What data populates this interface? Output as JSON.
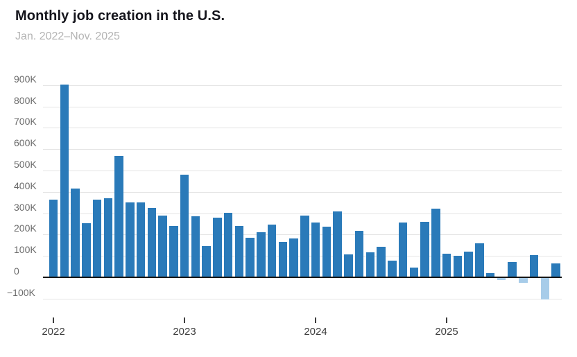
{
  "chart_data": {
    "type": "bar",
    "title": "Monthly job creation in the U.S.",
    "subtitle": "Jan. 2022–Nov. 2025",
    "units": "jobs added, thousands (K)",
    "legend": "none",
    "grid": "horizontal only",
    "months": [
      "Jan. 2022",
      "Feb. 2022",
      "Mar. 2022",
      "Apr. 2022",
      "May 2022",
      "Jun. 2022",
      "Jul. 2022",
      "Aug. 2022",
      "Sep. 2022",
      "Oct. 2022",
      "Nov. 2022",
      "Dec. 2022",
      "Jan. 2023",
      "Feb. 2023",
      "Mar. 2023",
      "Apr. 2023",
      "May 2023",
      "Jun. 2023",
      "Jul. 2023",
      "Aug. 2023",
      "Sep. 2023",
      "Oct. 2023",
      "Nov. 2023",
      "Dec. 2023",
      "Jan. 2024",
      "Feb. 2024",
      "Mar. 2024",
      "Apr. 2024",
      "May 2024",
      "Jun. 2024",
      "Jul. 2024",
      "Aug. 2024",
      "Sep. 2024",
      "Oct. 2024",
      "Nov. 2024",
      "Dec. 2024",
      "Jan. 2025",
      "Feb. 2025",
      "Mar. 2025",
      "Apr. 2025",
      "May 2025",
      "Jun. 2025",
      "Jul. 2025",
      "Aug. 2025",
      "Sep. 2025",
      "Oct. 2025",
      "Nov. 2025"
    ],
    "values": [
      364,
      904,
      414,
      254,
      364,
      370,
      568,
      352,
      350,
      324,
      290,
      239,
      482,
      287,
      146,
      278,
      303,
      240,
      184,
      210,
      246,
      165,
      182,
      290,
      256,
      236,
      310,
      108,
      216,
      118,
      144,
      78,
      255,
      44,
      261,
      323,
      111,
      102,
      120,
      158,
      19,
      -13,
      72,
      -26,
      105,
      -105,
      64
    ],
    "y_ticks": [
      {
        "v": 900,
        "label": "900K"
      },
      {
        "v": 800,
        "label": "800K"
      },
      {
        "v": 700,
        "label": "700K"
      },
      {
        "v": 600,
        "label": "600K"
      },
      {
        "v": 500,
        "label": "500K"
      },
      {
        "v": 400,
        "label": "400K"
      },
      {
        "v": 300,
        "label": "300K"
      },
      {
        "v": 200,
        "label": "200K"
      },
      {
        "v": 100,
        "label": "100K"
      },
      {
        "v": 0,
        "label": "0"
      },
      {
        "v": -100,
        "label": "−100K"
      }
    ],
    "x_ticks": [
      {
        "label": "2022",
        "month_index": 0
      },
      {
        "label": "2023",
        "month_index": 12
      },
      {
        "label": "2024",
        "month_index": 24
      },
      {
        "label": "2025",
        "month_index": 36
      }
    ],
    "ylim": [
      -150,
      900
    ],
    "colors": {
      "positive_bar": "#2a7ab9",
      "negative_bar": "#a7cce9",
      "zero_axis": "#161616",
      "gridline": "#e4e4e4",
      "title_text": "#15151c",
      "subtitle_text": "#b4b4b4",
      "axis_text": "#6b6b6b"
    }
  }
}
